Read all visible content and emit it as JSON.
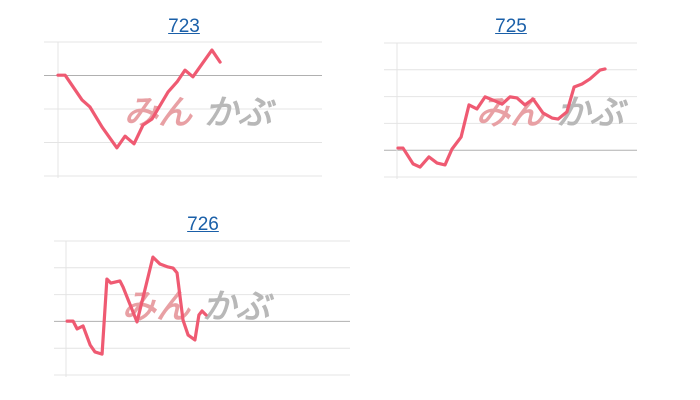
{
  "watermark": {
    "left": "みん",
    "right": "かぶ",
    "left_color": "#e8a0a4",
    "right_color": "#b8b8b8"
  },
  "colors": {
    "line": "#ef5a72",
    "grid": "#e4e4e4",
    "baseline": "#b0b0b0"
  },
  "chart_data": [
    {
      "type": "line",
      "title": "723",
      "grid": true,
      "xlim": [
        0,
        100
      ],
      "ylim": [
        0,
        4
      ],
      "baseline": 3,
      "gridlines": [
        0,
        1,
        2,
        3,
        4
      ],
      "x": [
        0,
        2.7,
        9.1,
        12.1,
        16.7,
        22.3,
        25.4,
        28.8,
        32.2,
        35.6,
        41.7,
        45.1,
        48.1,
        51.1,
        58.3,
        61.4
      ],
      "y": [
        3.01,
        3.01,
        2.27,
        2.06,
        1.46,
        0.84,
        1.19,
        0.96,
        1.52,
        1.7,
        2.51,
        2.81,
        3.16,
        2.96,
        3.76,
        3.4
      ]
    },
    {
      "type": "line",
      "title": "725",
      "grid": true,
      "xlim": [
        0,
        100
      ],
      "ylim": [
        0,
        5
      ],
      "baseline": 1,
      "gridlines": [
        0,
        1,
        2,
        3,
        4,
        5
      ],
      "x": [
        0.4,
        2.5,
        6.7,
        9.6,
        13.3,
        16.7,
        20,
        22.9,
        26.7,
        30,
        33.3,
        36.7,
        40,
        43.8,
        47.1,
        50,
        53.3,
        56.7,
        60.8,
        64.6,
        67.1,
        70.8,
        73.8,
        77.1,
        80.4,
        84.6,
        86.7
      ],
      "y": [
        1.08,
        1.08,
        0.49,
        0.37,
        0.75,
        0.52,
        0.45,
        1.04,
        1.49,
        2.69,
        2.54,
        2.99,
        2.87,
        2.72,
        2.99,
        2.95,
        2.69,
        2.91,
        2.39,
        2.2,
        2.16,
        2.43,
        3.36,
        3.47,
        3.66,
        3.99,
        4.03
      ]
    },
    {
      "type": "line",
      "title": "726",
      "grid": true,
      "xlim": [
        0,
        100
      ],
      "ylim": [
        0,
        5
      ],
      "baseline": 2,
      "gridlines": [
        0,
        1,
        2,
        3,
        4,
        5
      ],
      "x": [
        0.4,
        2.5,
        3.9,
        6.0,
        8.5,
        10.2,
        12.7,
        14.4,
        15.8,
        19.0,
        20.1,
        25.0,
        28.2,
        30.6,
        33.1,
        35.9,
        37.7,
        39.1,
        41.2,
        43.0,
        45.4,
        46.8,
        47.9,
        49.3
      ],
      "y": [
        2.01,
        2.01,
        1.72,
        1.83,
        1.12,
        0.86,
        0.78,
        3.58,
        3.43,
        3.51,
        3.28,
        1.98,
        3.36,
        4.4,
        4.14,
        4.03,
        3.99,
        3.81,
        2.05,
        1.49,
        1.31,
        2.24,
        2.39,
        2.24
      ]
    }
  ]
}
